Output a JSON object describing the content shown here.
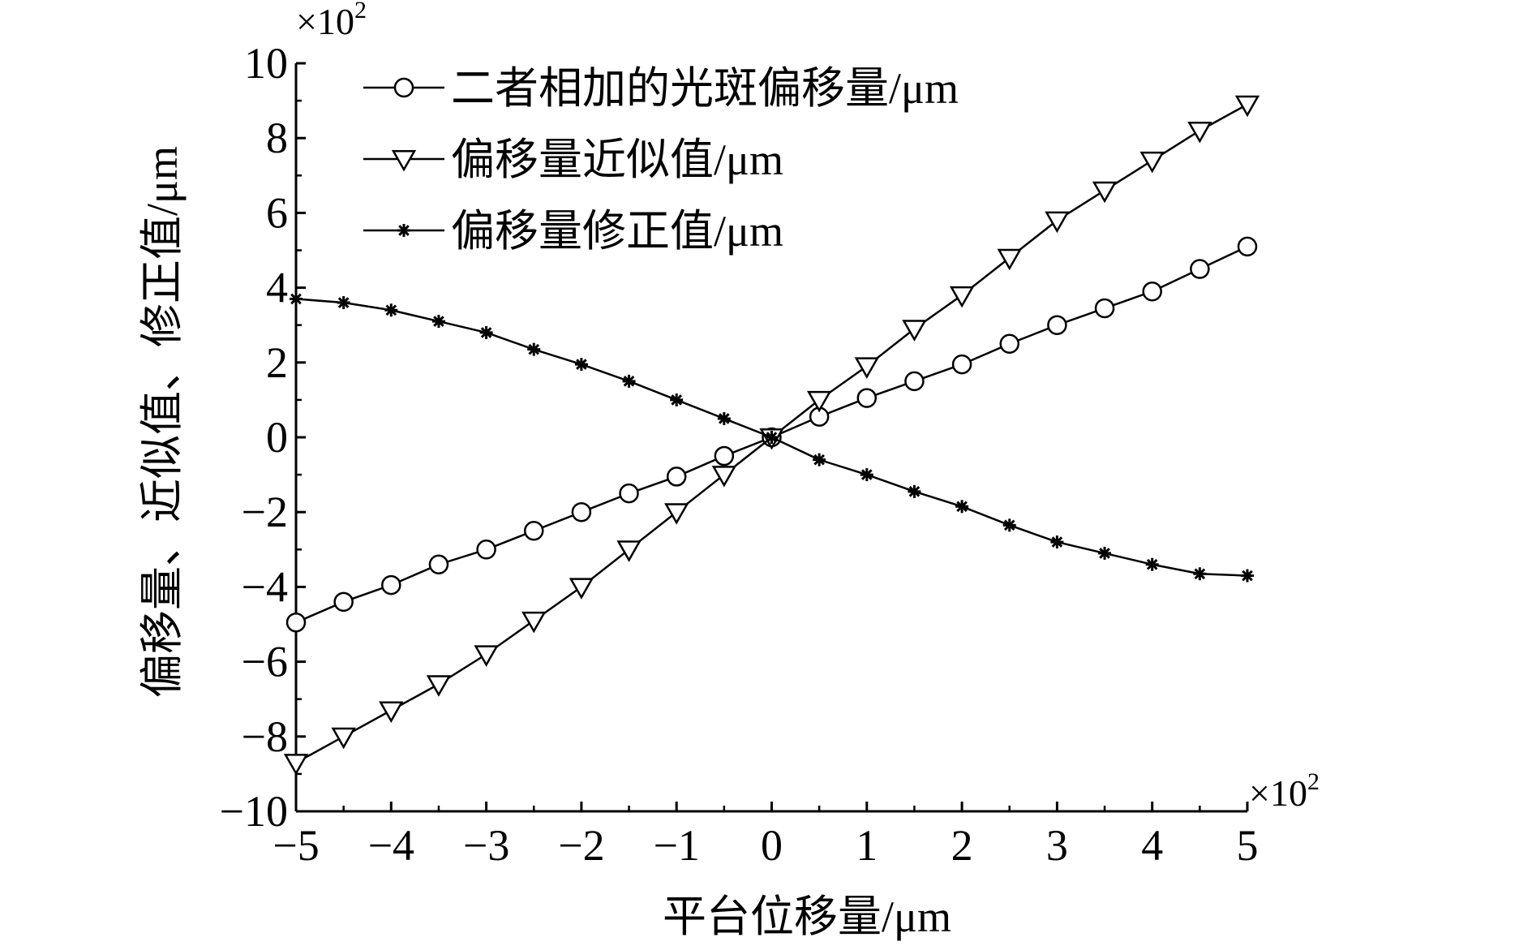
{
  "chart_data": {
    "type": "line",
    "xlabel": "平台位移量/μm",
    "ylabel": "偏移量、近似值、修正值/μm",
    "x_multiplier": "×10",
    "x_multiplier_exp": "2",
    "y_multiplier": "×10",
    "y_multiplier_exp": "2",
    "xlim": [
      -5,
      5
    ],
    "ylim": [
      -10,
      10
    ],
    "xticks": [
      "−5",
      "−4",
      "−3",
      "−2",
      "−1",
      "0",
      "1",
      "2",
      "3",
      "4",
      "5"
    ],
    "yticks": [
      "−10",
      "−8",
      "−6",
      "−4",
      "−2",
      "0",
      "2",
      "4",
      "6",
      "8",
      "10"
    ],
    "legend_position": "top-left",
    "grid": false,
    "x": [
      -5,
      -4.5,
      -4,
      -3.5,
      -3,
      -2.5,
      -2,
      -1.5,
      -1,
      -0.5,
      0,
      0.5,
      1,
      1.5,
      2,
      2.5,
      3,
      3.5,
      4,
      4.5,
      5
    ],
    "series": [
      {
        "name": "二者相加的光斑偏移量/μm",
        "marker": "circle",
        "values": [
          -4.95,
          -4.4,
          -3.95,
          -3.4,
          -3.0,
          -2.5,
          -2.0,
          -1.5,
          -1.05,
          -0.5,
          0,
          0.55,
          1.05,
          1.5,
          1.95,
          2.5,
          3.0,
          3.45,
          3.9,
          4.5,
          5.1
        ]
      },
      {
        "name": "偏移量近似值/μm",
        "marker": "triangle-down",
        "values": [
          -8.7,
          -8.0,
          -7.3,
          -6.6,
          -5.8,
          -4.9,
          -4.0,
          -3.0,
          -2.0,
          -1.0,
          0,
          1.0,
          1.9,
          2.9,
          3.8,
          4.8,
          5.8,
          6.6,
          7.4,
          8.2,
          8.9
        ]
      },
      {
        "name": "偏移量修正值/μm",
        "marker": "star",
        "values": [
          3.7,
          3.6,
          3.4,
          3.1,
          2.8,
          2.35,
          1.95,
          1.5,
          1.0,
          0.5,
          0,
          -0.6,
          -1.0,
          -1.45,
          -1.85,
          -2.35,
          -2.8,
          -3.1,
          -3.4,
          -3.65,
          -3.7
        ]
      }
    ]
  }
}
